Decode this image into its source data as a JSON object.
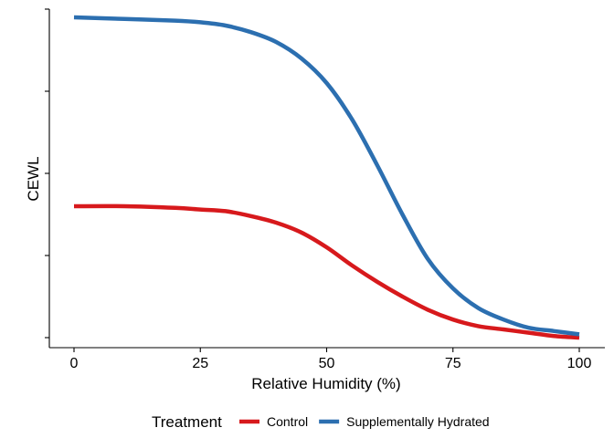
{
  "chart_data": {
    "type": "line",
    "xlabel": "Relative Humidity (%)",
    "ylabel": "CEWL",
    "xlim": [
      0,
      100
    ],
    "x_ticks": [
      0,
      25,
      50,
      75,
      100
    ],
    "y_ticks": [
      0,
      0.5,
      1,
      1.5,
      2
    ],
    "ylim": [
      0,
      2
    ],
    "y_tick_labels_shown": false,
    "grid": false,
    "legend_title": "Treatment",
    "legend_position": "bottom",
    "series": [
      {
        "name": "Control",
        "color": "#d7191c",
        "x": [
          0,
          10,
          20,
          25,
          30,
          35,
          40,
          45,
          50,
          55,
          60,
          65,
          70,
          75,
          80,
          85,
          90,
          95,
          100
        ],
        "y": [
          0.8,
          0.8,
          0.79,
          0.78,
          0.77,
          0.74,
          0.7,
          0.64,
          0.55,
          0.44,
          0.34,
          0.25,
          0.17,
          0.11,
          0.07,
          0.05,
          0.03,
          0.01,
          0.0
        ]
      },
      {
        "name": "Supplementally Hydrated",
        "color": "#2c6fb0",
        "x": [
          0,
          10,
          20,
          25,
          30,
          35,
          40,
          45,
          50,
          55,
          60,
          65,
          70,
          75,
          80,
          85,
          90,
          95,
          100
        ],
        "y": [
          1.95,
          1.94,
          1.93,
          1.92,
          1.9,
          1.86,
          1.8,
          1.7,
          1.55,
          1.33,
          1.05,
          0.75,
          0.48,
          0.3,
          0.18,
          0.11,
          0.06,
          0.04,
          0.02
        ]
      }
    ]
  }
}
